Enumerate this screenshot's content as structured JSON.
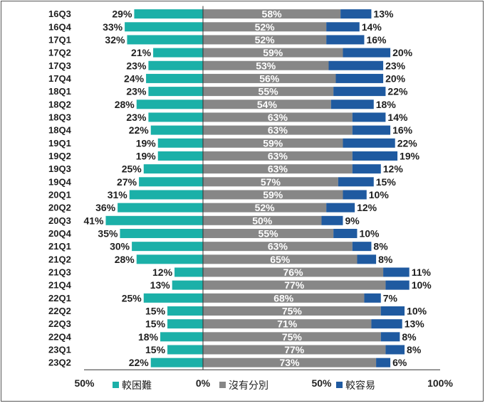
{
  "chart_data": {
    "type": "bar",
    "orientation": "horizontal-diverging-stacked",
    "categories": [
      "16Q3",
      "16Q4",
      "17Q1",
      "17Q2",
      "17Q3",
      "17Q4",
      "18Q1",
      "18Q2",
      "18Q3",
      "18Q4",
      "19Q1",
      "19Q2",
      "19Q3",
      "19Q4",
      "20Q1",
      "20Q2",
      "20Q3",
      "20Q4",
      "21Q1",
      "21Q2",
      "21Q3",
      "21Q4",
      "22Q1",
      "22Q2",
      "22Q3",
      "22Q4",
      "23Q1",
      "23Q2"
    ],
    "series": [
      {
        "name": "較困難",
        "color": "#1bb0a8",
        "values": [
          29,
          33,
          32,
          21,
          23,
          24,
          23,
          28,
          23,
          22,
          19,
          19,
          25,
          27,
          31,
          36,
          41,
          35,
          30,
          28,
          12,
          13,
          25,
          15,
          15,
          18,
          15,
          22
        ]
      },
      {
        "name": "沒有分別",
        "color": "#878787",
        "values": [
          58,
          52,
          52,
          59,
          53,
          56,
          55,
          54,
          63,
          63,
          59,
          63,
          63,
          57,
          59,
          52,
          50,
          55,
          63,
          65,
          76,
          77,
          68,
          75,
          71,
          75,
          77,
          73
        ]
      },
      {
        "name": "較容易",
        "color": "#1f5aa0",
        "values": [
          13,
          14,
          16,
          20,
          23,
          20,
          22,
          18,
          14,
          16,
          22,
          19,
          12,
          15,
          10,
          12,
          9,
          10,
          8,
          8,
          11,
          10,
          7,
          10,
          13,
          8,
          8,
          6
        ]
      }
    ],
    "x_ticks": [
      "50%",
      "0%",
      "50%",
      "100%"
    ],
    "xlim": [
      -50,
      100
    ],
    "legend_position": "bottom",
    "grid": false
  }
}
